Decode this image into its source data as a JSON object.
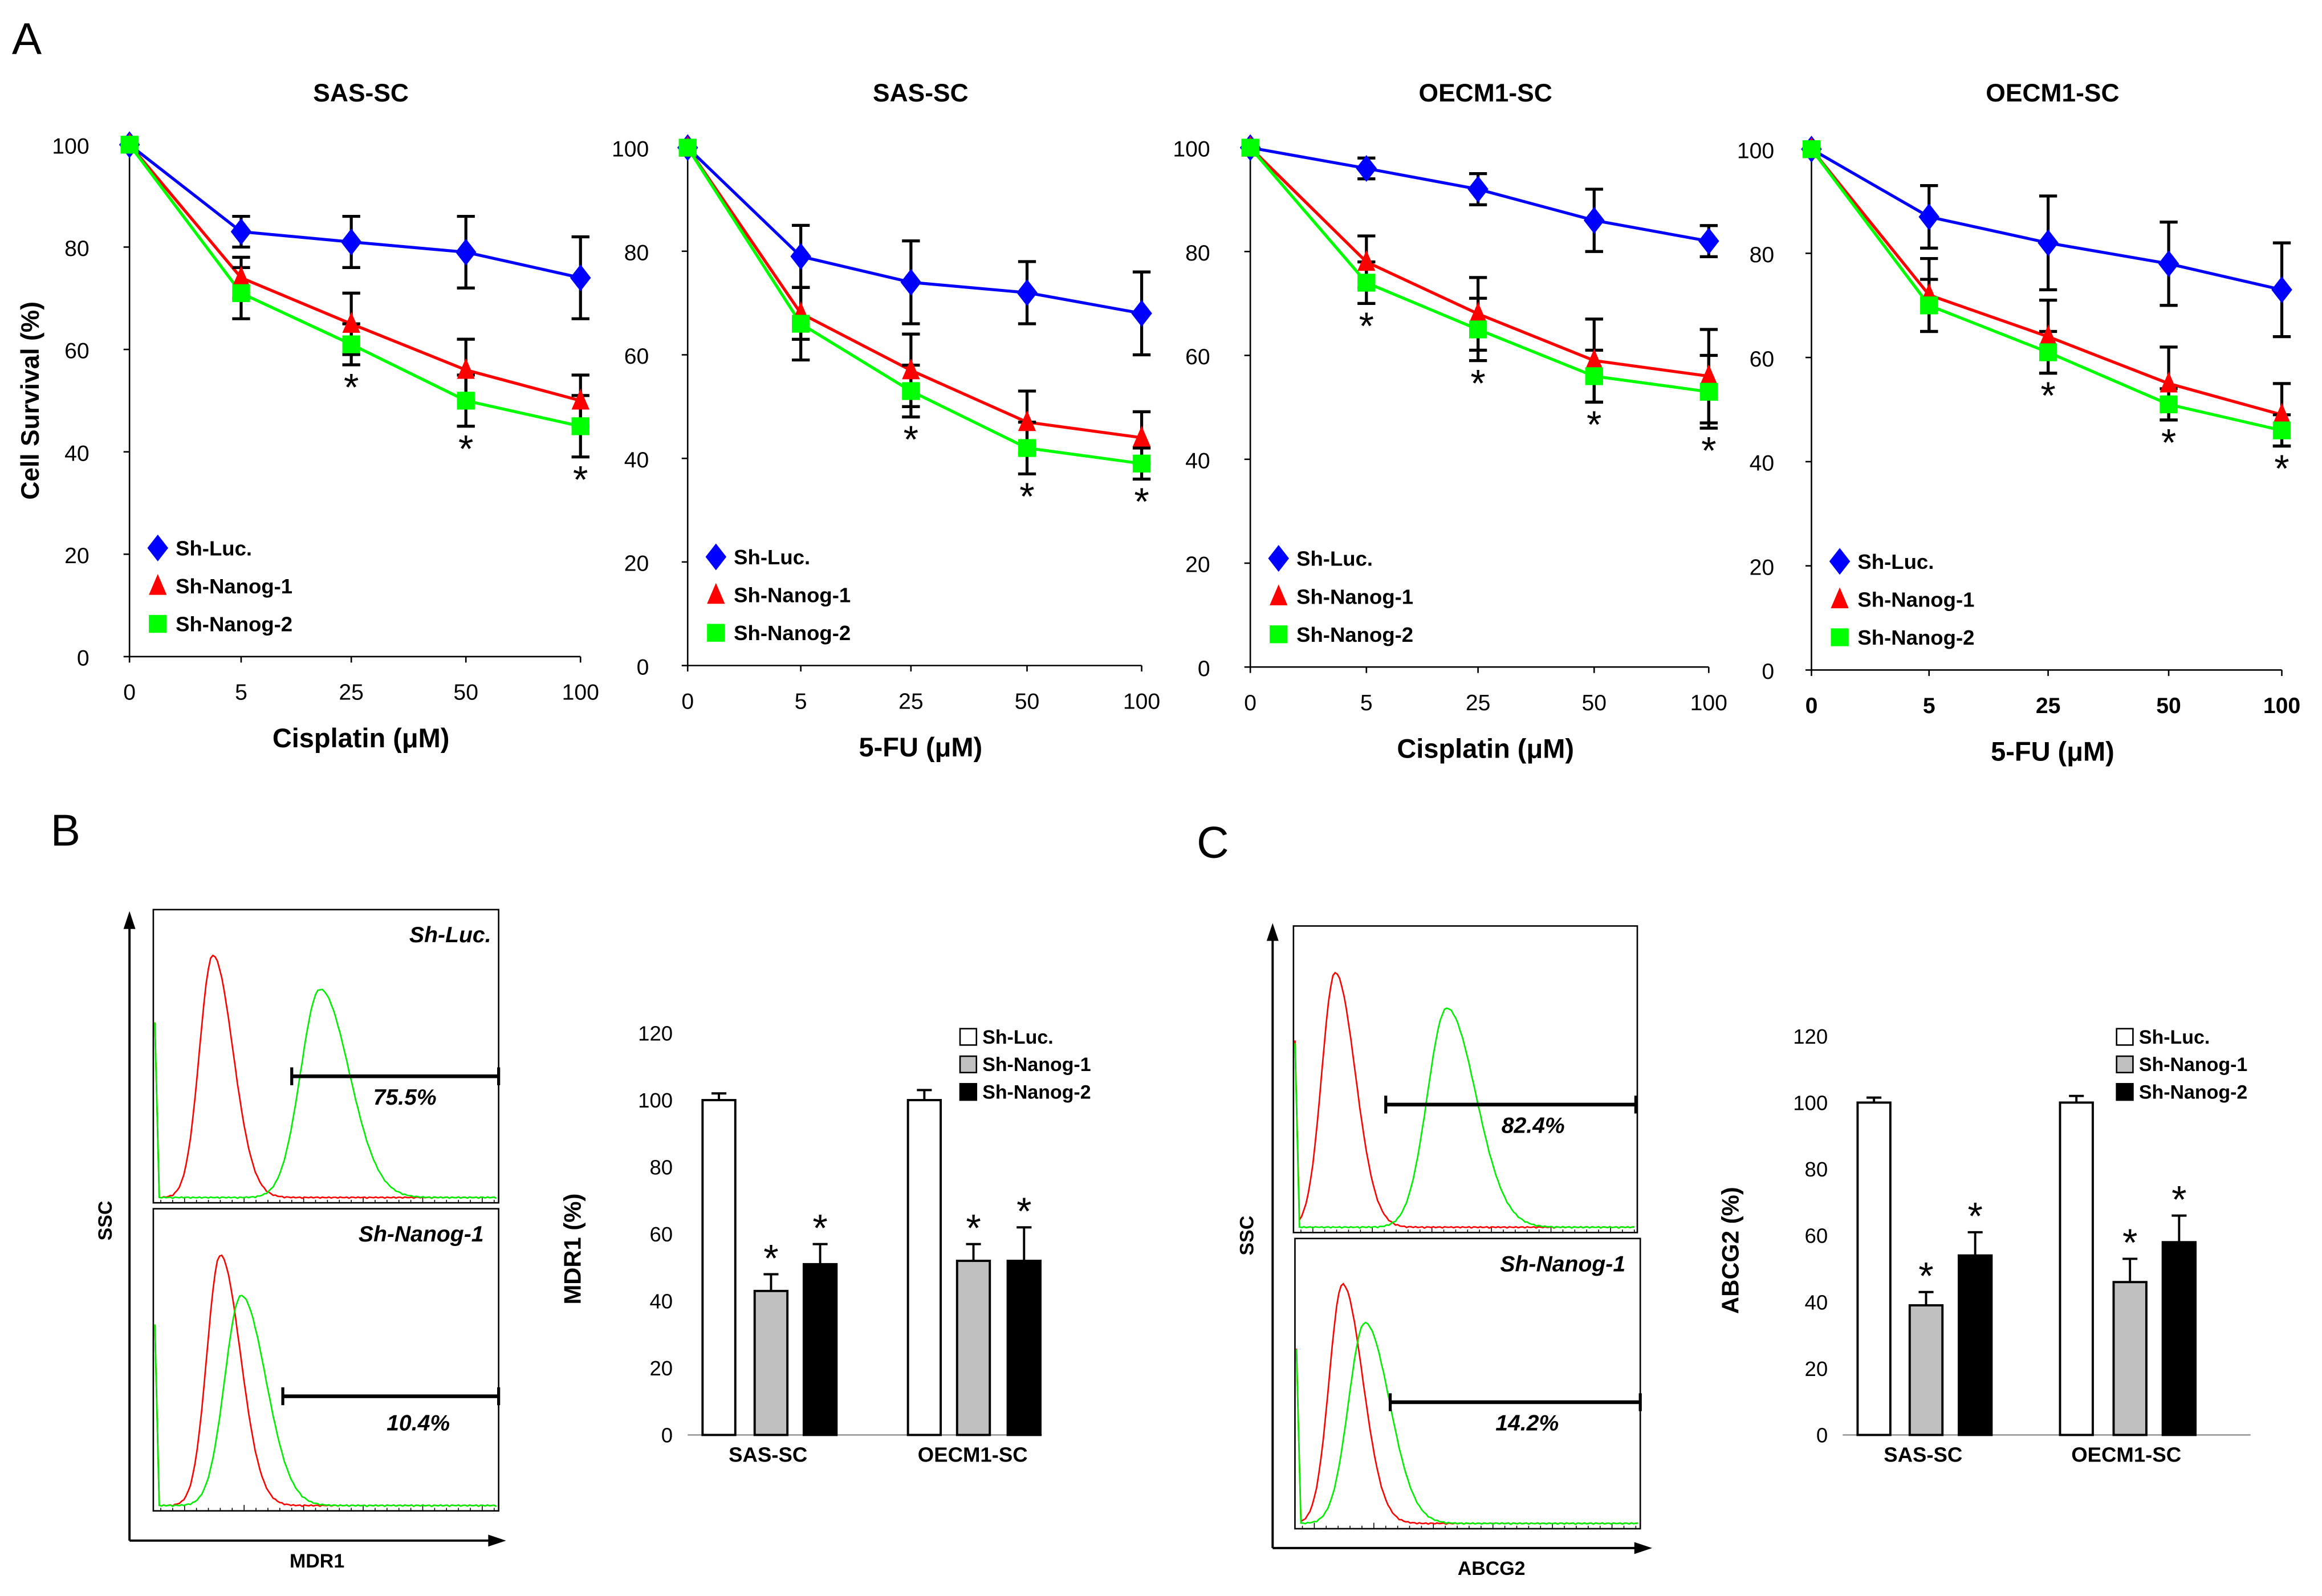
{
  "panel_labels": {
    "a": "A",
    "b": "B",
    "c": "C"
  },
  "chart_data": [
    {
      "type": "line",
      "title": "SAS-SC",
      "xlabel": "Cisplatin (μM)",
      "ylabel": "Cell Survival (%)",
      "categories": [
        "0",
        "5",
        "25",
        "50",
        "100"
      ],
      "ylim": [
        0,
        100
      ],
      "yticks": [
        "0",
        "20",
        "40",
        "60",
        "80",
        "100"
      ],
      "legend_placement": "bottom-left",
      "series": [
        {
          "name": "Sh-Luc.",
          "color": "#0000ff",
          "marker": "diamond",
          "values": [
            100,
            83,
            81,
            79,
            74
          ],
          "errors": [
            0,
            3,
            5,
            7,
            8
          ]
        },
        {
          "name": "Sh-Nanog-1",
          "color": "#ff0000",
          "marker": "triangle",
          "values": [
            100,
            74,
            65,
            56,
            50
          ],
          "errors": [
            0,
            4,
            6,
            6,
            5
          ]
        },
        {
          "name": "Sh-Nanog-2",
          "color": "#00ff00",
          "marker": "square",
          "values": [
            100,
            71,
            61,
            50,
            45
          ],
          "errors": [
            0,
            5,
            4,
            5,
            6
          ]
        }
      ],
      "significance": [
        "",
        "",
        "*",
        "*",
        "*"
      ]
    },
    {
      "type": "line",
      "title": "SAS-SC",
      "xlabel": "5-FU (μM)",
      "ylabel": "",
      "categories": [
        "0",
        "5",
        "25",
        "50",
        "100"
      ],
      "ylim": [
        0,
        100
      ],
      "yticks": [
        "0",
        "20",
        "40",
        "60",
        "80",
        "100"
      ],
      "legend_placement": "bottom-left",
      "series": [
        {
          "name": "Sh-Luc.",
          "color": "#0000ff",
          "marker": "diamond",
          "values": [
            100,
            79,
            74,
            72,
            68
          ],
          "errors": [
            0,
            6,
            8,
            6,
            8
          ]
        },
        {
          "name": "Sh-Nanog-1",
          "color": "#ff0000",
          "marker": "triangle",
          "values": [
            100,
            68,
            57,
            47,
            44
          ],
          "errors": [
            0,
            5,
            7,
            6,
            5
          ]
        },
        {
          "name": "Sh-Nanog-2",
          "color": "#00ff00",
          "marker": "square",
          "values": [
            100,
            66,
            53,
            42,
            39
          ],
          "errors": [
            0,
            7,
            5,
            5,
            3
          ]
        }
      ],
      "significance": [
        "",
        "",
        "*",
        "*",
        "*"
      ]
    },
    {
      "type": "line",
      "title": "OECM1-SC",
      "xlabel": "Cisplatin (μM)",
      "ylabel": "",
      "categories": [
        "0",
        "5",
        "25",
        "50",
        "100"
      ],
      "ylim": [
        0,
        100
      ],
      "yticks": [
        "0",
        "20",
        "40",
        "60",
        "80",
        "100"
      ],
      "legend_placement": "bottom-left",
      "series": [
        {
          "name": "Sh-Luc.",
          "color": "#0000ff",
          "marker": "diamond",
          "values": [
            100,
            96,
            92,
            86,
            82
          ],
          "errors": [
            0,
            2,
            3,
            6,
            3
          ]
        },
        {
          "name": "Sh-Nanog-1",
          "color": "#ff0000",
          "marker": "triangle",
          "values": [
            100,
            78,
            68,
            59,
            56
          ],
          "errors": [
            0,
            5,
            7,
            8,
            9
          ]
        },
        {
          "name": "Sh-Nanog-2",
          "color": "#00ff00",
          "marker": "square",
          "values": [
            100,
            74,
            65,
            56,
            53
          ],
          "errors": [
            0,
            4,
            6,
            5,
            7
          ]
        }
      ],
      "significance": [
        "",
        "*",
        "*",
        "*",
        "*"
      ]
    },
    {
      "type": "line",
      "title": "OECM1-SC",
      "xlabel": "5-FU (μM)",
      "ylabel": "",
      "categories": [
        "0",
        "5",
        "25",
        "50",
        "100"
      ],
      "ylim": [
        0,
        100
      ],
      "yticks": [
        "0",
        "20",
        "40",
        "60",
        "80",
        "100"
      ],
      "legend_placement": "bottom-left",
      "series": [
        {
          "name": "Sh-Luc.",
          "color": "#0000ff",
          "marker": "diamond",
          "values": [
            100,
            87,
            82,
            78,
            73
          ],
          "errors": [
            0,
            6,
            9,
            8,
            9
          ]
        },
        {
          "name": "Sh-Nanog-1",
          "color": "#ff0000",
          "marker": "triangle",
          "values": [
            100,
            72,
            64,
            55,
            49
          ],
          "errors": [
            0,
            7,
            7,
            7,
            6
          ]
        },
        {
          "name": "Sh-Nanog-2",
          "color": "#00ff00",
          "marker": "square",
          "values": [
            100,
            70,
            61,
            51,
            46
          ],
          "errors": [
            0,
            5,
            4,
            3,
            3
          ]
        }
      ],
      "significance": [
        "",
        "",
        "*",
        "*",
        "*"
      ]
    },
    {
      "type": "bar",
      "title": "",
      "ylabel": "MDR1 (%)",
      "categories": [
        "SAS-SC",
        "OECM1-SC"
      ],
      "ylim": [
        0,
        120
      ],
      "yticks": [
        "0",
        "20",
        "40",
        "60",
        "80",
        "100",
        "120"
      ],
      "legend_placement": "top-right",
      "series": [
        {
          "name": "Sh-Luc.",
          "color": "#ffffff",
          "values": [
            100,
            100
          ],
          "errors": [
            2,
            3
          ],
          "sig": [
            "",
            ""
          ]
        },
        {
          "name": "Sh-Nanog-1",
          "color": "#c0c0c0",
          "values": [
            43,
            52
          ],
          "errors": [
            5,
            5
          ],
          "sig": [
            "*",
            "*"
          ]
        },
        {
          "name": "Sh-Nanog-2",
          "color": "#000000",
          "values": [
            51,
            52
          ],
          "errors": [
            6,
            10
          ],
          "sig": [
            "*",
            "*"
          ]
        }
      ]
    },
    {
      "type": "bar",
      "title": "",
      "ylabel": "ABCG2 (%)",
      "categories": [
        "SAS-SC",
        "OECM1-SC"
      ],
      "ylim": [
        0,
        120
      ],
      "yticks": [
        "0",
        "20",
        "40",
        "60",
        "80",
        "100",
        "120"
      ],
      "legend_placement": "top-right",
      "series": [
        {
          "name": "Sh-Luc.",
          "color": "#ffffff",
          "values": [
            100,
            100
          ],
          "errors": [
            1.5,
            2
          ],
          "sig": [
            "",
            ""
          ]
        },
        {
          "name": "Sh-Nanog-1",
          "color": "#c0c0c0",
          "values": [
            39,
            46
          ],
          "errors": [
            4,
            7
          ],
          "sig": [
            "*",
            "*"
          ]
        },
        {
          "name": "Sh-Nanog-2",
          "color": "#000000",
          "values": [
            54,
            58
          ],
          "errors": [
            7,
            8
          ],
          "sig": [
            "*",
            "*"
          ]
        }
      ]
    }
  ],
  "flow": {
    "b": {
      "ylabel": "SSC",
      "xlabel": "MDR1",
      "panels": [
        {
          "label": "Sh-Luc.",
          "gate": "75.5%",
          "percent": 75.5
        },
        {
          "label": "Sh-Nanog-1",
          "gate": "10.4%",
          "percent": 10.4
        }
      ]
    },
    "c": {
      "ylabel": "SSC",
      "xlabel": "ABCG2",
      "panels": [
        {
          "label": "",
          "gate": "82.4%",
          "percent": 82.4
        },
        {
          "label": "Sh-Nanog-1",
          "gate": "14.2%",
          "percent": 14.2
        }
      ]
    }
  }
}
